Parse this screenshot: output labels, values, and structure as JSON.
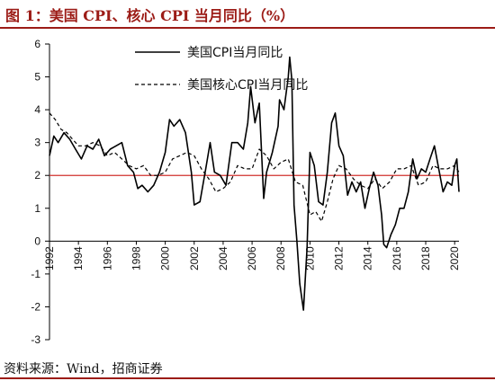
{
  "figure": {
    "title": "图 1：美国 CPI、核心 CPI 当月同比（%）",
    "source": "资料来源：Wind，招商证券",
    "colors": {
      "title": "#9c1c17",
      "rule": "#9c1c17",
      "reference_line": "#d0312d",
      "series": "#000000"
    }
  },
  "chart_data": {
    "type": "line",
    "title": "",
    "xlabel": "",
    "ylabel": "",
    "xlim": [
      1992,
      2020.3
    ],
    "ylim": [
      -3,
      6
    ],
    "yticks": [
      -3,
      -2,
      -1,
      0,
      1,
      2,
      3,
      4,
      5,
      6
    ],
    "xticks": [
      "1992",
      "1994",
      "1996",
      "1998",
      "2000",
      "2002",
      "2004",
      "2006",
      "2008",
      "2010",
      "2012",
      "2014",
      "2016",
      "2018",
      "2020"
    ],
    "grid": false,
    "legend_position": "top-center",
    "reference_line": {
      "y": 2
    },
    "series": [
      {
        "name": "美国CPI当月同比",
        "style": "solid",
        "x": [
          1992.0,
          1992.3,
          1992.6,
          1993.0,
          1993.4,
          1993.8,
          1994.2,
          1994.6,
          1995.0,
          1995.4,
          1995.8,
          1996.2,
          1996.6,
          1997.0,
          1997.4,
          1997.8,
          1998.1,
          1998.4,
          1998.8,
          1999.2,
          1999.6,
          2000.0,
          2000.3,
          2000.6,
          2001.0,
          2001.4,
          2001.8,
          2002.0,
          2002.4,
          2002.8,
          2003.1,
          2003.4,
          2003.8,
          2004.2,
          2004.6,
          2005.0,
          2005.4,
          2005.7,
          2005.9,
          2006.2,
          2006.5,
          2006.8,
          2007.0,
          2007.4,
          2007.8,
          2007.9,
          2008.2,
          2008.5,
          2008.6,
          2008.75,
          2008.9,
          2009.1,
          2009.3,
          2009.55,
          2009.8,
          2010.0,
          2010.3,
          2010.6,
          2010.9,
          2011.2,
          2011.5,
          2011.75,
          2012.0,
          2012.3,
          2012.6,
          2012.9,
          2013.2,
          2013.5,
          2013.8,
          2014.1,
          2014.4,
          2014.7,
          2014.95,
          2015.1,
          2015.3,
          2015.6,
          2015.9,
          2016.2,
          2016.5,
          2016.8,
          2017.1,
          2017.4,
          2017.7,
          2018.0,
          2018.3,
          2018.6,
          2018.9,
          2019.2,
          2019.5,
          2019.8,
          2020.0,
          2020.15,
          2020.3
        ],
        "y": [
          2.6,
          3.2,
          3.0,
          3.3,
          3.1,
          2.8,
          2.5,
          2.9,
          2.8,
          3.1,
          2.6,
          2.8,
          2.9,
          3.0,
          2.3,
          2.1,
          1.6,
          1.7,
          1.5,
          1.7,
          2.1,
          2.7,
          3.7,
          3.5,
          3.7,
          3.3,
          2.1,
          1.1,
          1.2,
          2.2,
          3.0,
          2.1,
          2.0,
          1.7,
          3.0,
          3.0,
          2.8,
          3.6,
          4.7,
          3.6,
          4.2,
          1.3,
          2.1,
          2.7,
          3.5,
          4.3,
          4.0,
          5.0,
          5.6,
          4.9,
          1.1,
          0.0,
          -1.3,
          -2.1,
          -0.2,
          2.7,
          2.3,
          1.2,
          1.1,
          2.1,
          3.6,
          3.9,
          2.9,
          2.6,
          1.4,
          1.8,
          1.5,
          1.8,
          1.0,
          1.6,
          2.1,
          1.7,
          0.8,
          -0.1,
          -0.2,
          0.2,
          0.5,
          1.0,
          1.0,
          1.5,
          2.5,
          1.9,
          2.2,
          2.1,
          2.5,
          2.9,
          2.2,
          1.5,
          1.8,
          1.7,
          2.3,
          2.5,
          1.5
        ]
      },
      {
        "name": "美国核心CPI当月同比",
        "style": "dashed",
        "x": [
          1992.0,
          1992.4,
          1992.8,
          1993.2,
          1993.6,
          1994.0,
          1994.5,
          1995.0,
          1995.5,
          1996.0,
          1996.5,
          1997.0,
          1997.5,
          1998.0,
          1998.5,
          1999.0,
          1999.5,
          2000.0,
          2000.5,
          2001.0,
          2001.5,
          2002.0,
          2002.5,
          2003.0,
          2003.5,
          2004.0,
          2004.5,
          2005.0,
          2005.5,
          2006.0,
          2006.5,
          2007.0,
          2007.5,
          2008.0,
          2008.5,
          2009.0,
          2009.5,
          2010.0,
          2010.4,
          2010.8,
          2011.2,
          2011.6,
          2012.0,
          2012.5,
          2013.0,
          2013.5,
          2014.0,
          2014.5,
          2015.0,
          2015.5,
          2016.0,
          2016.5,
          2017.0,
          2017.5,
          2018.0,
          2018.5,
          2019.0,
          2019.5,
          2020.0,
          2020.3
        ],
        "y": [
          3.9,
          3.7,
          3.4,
          3.3,
          3.1,
          2.9,
          2.9,
          3.0,
          2.9,
          2.6,
          2.7,
          2.5,
          2.3,
          2.2,
          2.3,
          2.0,
          2.0,
          2.1,
          2.5,
          2.6,
          2.7,
          2.6,
          2.2,
          1.9,
          1.5,
          1.6,
          1.8,
          2.3,
          2.2,
          2.2,
          2.8,
          2.6,
          2.2,
          2.4,
          2.5,
          1.8,
          1.7,
          0.8,
          0.9,
          0.6,
          1.2,
          1.9,
          2.3,
          2.2,
          1.9,
          1.7,
          1.6,
          1.9,
          1.6,
          1.8,
          2.2,
          2.2,
          2.3,
          1.7,
          1.8,
          2.3,
          2.2,
          2.2,
          2.3,
          2.1
        ]
      }
    ]
  }
}
